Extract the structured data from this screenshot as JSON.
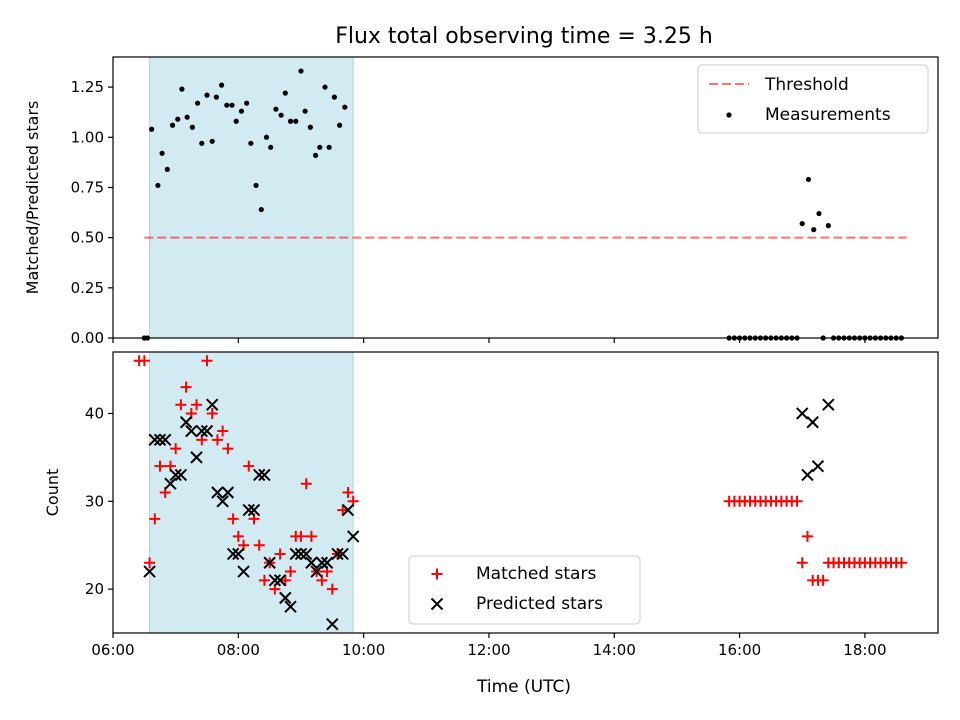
{
  "figure": {
    "title": "Flux total observing time = 3.25 h",
    "xlabel": "Time (UTC)"
  },
  "colors": {
    "shade": "#add8e6",
    "threshold": "#ff0000",
    "measurements": "#000000",
    "matched": "#ff0000",
    "predicted": "#000000"
  },
  "chart_data": [
    {
      "type": "scatter",
      "ylabel": "Matched/Predicted stars",
      "xlim": [
        "06:00",
        "19:10"
      ],
      "ylim": [
        0,
        1.4
      ],
      "x_ticks": [
        "06:00",
        "08:00",
        "10:00",
        "12:00",
        "14:00",
        "16:00",
        "18:00"
      ],
      "y_ticks": [
        "0.00",
        "0.25",
        "0.50",
        "0.75",
        "1.00",
        "1.25"
      ],
      "grid": false,
      "legend_position": "upper-right",
      "shaded_span": [
        "06:35",
        "09:50"
      ],
      "threshold": {
        "name": "Threshold",
        "y": 0.5,
        "x": [
          "06:30",
          "18:40"
        ],
        "style": "dashed"
      },
      "series": [
        {
          "name": "Measurements",
          "marker": "dot",
          "points": [
            [
              "06:30",
              0.0
            ],
            [
              "06:33",
              0.0
            ],
            [
              "06:37",
              1.04
            ],
            [
              "06:43",
              0.76
            ],
            [
              "06:47",
              0.92
            ],
            [
              "06:52",
              0.84
            ],
            [
              "06:57",
              1.06
            ],
            [
              "07:02",
              1.09
            ],
            [
              "07:06",
              1.24
            ],
            [
              "07:11",
              1.1
            ],
            [
              "07:16",
              1.05
            ],
            [
              "07:21",
              1.17
            ],
            [
              "07:25",
              0.97
            ],
            [
              "07:30",
              1.21
            ],
            [
              "07:35",
              0.98
            ],
            [
              "07:39",
              1.2
            ],
            [
              "07:44",
              1.26
            ],
            [
              "07:49",
              1.16
            ],
            [
              "07:54",
              1.16
            ],
            [
              "07:58",
              1.08
            ],
            [
              "08:03",
              1.13
            ],
            [
              "08:08",
              1.17
            ],
            [
              "08:12",
              0.97
            ],
            [
              "08:17",
              0.76
            ],
            [
              "08:22",
              0.64
            ],
            [
              "08:27",
              1.0
            ],
            [
              "08:31",
              0.95
            ],
            [
              "08:36",
              1.14
            ],
            [
              "08:41",
              1.11
            ],
            [
              "08:45",
              1.22
            ],
            [
              "08:50",
              1.08
            ],
            [
              "08:55",
              1.08
            ],
            [
              "09:00",
              1.33
            ],
            [
              "09:04",
              1.13
            ],
            [
              "09:09",
              1.05
            ],
            [
              "09:14",
              0.91
            ],
            [
              "09:18",
              0.95
            ],
            [
              "09:23",
              1.25
            ],
            [
              "09:27",
              0.95
            ],
            [
              "09:32",
              1.2
            ],
            [
              "09:37",
              1.06
            ],
            [
              "09:42",
              1.15
            ],
            [
              "15:50",
              0.0
            ],
            [
              "15:55",
              0.0
            ],
            [
              "16:00",
              0.0
            ],
            [
              "16:05",
              0.0
            ],
            [
              "16:10",
              0.0
            ],
            [
              "16:15",
              0.0
            ],
            [
              "16:20",
              0.0
            ],
            [
              "16:25",
              0.0
            ],
            [
              "16:30",
              0.0
            ],
            [
              "16:35",
              0.0
            ],
            [
              "16:40",
              0.0
            ],
            [
              "16:45",
              0.0
            ],
            [
              "16:50",
              0.0
            ],
            [
              "16:55",
              0.0
            ],
            [
              "17:00",
              0.57
            ],
            [
              "17:06",
              0.79
            ],
            [
              "17:11",
              0.54
            ],
            [
              "17:16",
              0.62
            ],
            [
              "17:20",
              0.0
            ],
            [
              "17:25",
              0.56
            ],
            [
              "17:30",
              0.0
            ],
            [
              "17:35",
              0.0
            ],
            [
              "17:40",
              0.0
            ],
            [
              "17:45",
              0.0
            ],
            [
              "17:50",
              0.0
            ],
            [
              "17:55",
              0.0
            ],
            [
              "18:00",
              0.0
            ],
            [
              "18:05",
              0.0
            ],
            [
              "18:10",
              0.0
            ],
            [
              "18:15",
              0.0
            ],
            [
              "18:20",
              0.0
            ],
            [
              "18:25",
              0.0
            ],
            [
              "18:30",
              0.0
            ],
            [
              "18:35",
              0.0
            ]
          ]
        }
      ]
    },
    {
      "type": "scatter",
      "ylabel": "Count",
      "xlabel": "Time (UTC)",
      "xlim": [
        "06:00",
        "19:10"
      ],
      "ylim": [
        15,
        47
      ],
      "x_ticks": [
        "06:00",
        "08:00",
        "10:00",
        "12:00",
        "14:00",
        "16:00",
        "18:00"
      ],
      "y_ticks": [
        "20",
        "30",
        "40"
      ],
      "grid": false,
      "legend_position": "lower-center",
      "shaded_span": [
        "06:35",
        "09:50"
      ],
      "series": [
        {
          "name": "Matched stars",
          "marker": "plus",
          "points": [
            [
              "06:25",
              46
            ],
            [
              "06:30",
              46
            ],
            [
              "06:35",
              23
            ],
            [
              "06:40",
              28
            ],
            [
              "06:45",
              34
            ],
            [
              "06:50",
              31
            ],
            [
              "06:55",
              34
            ],
            [
              "07:00",
              36
            ],
            [
              "07:05",
              41
            ],
            [
              "07:10",
              43
            ],
            [
              "07:15",
              40
            ],
            [
              "07:20",
              41
            ],
            [
              "07:25",
              37
            ],
            [
              "07:30",
              46
            ],
            [
              "07:35",
              40
            ],
            [
              "07:40",
              37
            ],
            [
              "07:45",
              38
            ],
            [
              "07:50",
              36
            ],
            [
              "07:55",
              28
            ],
            [
              "08:00",
              26
            ],
            [
              "08:05",
              25
            ],
            [
              "08:10",
              34
            ],
            [
              "08:15",
              28
            ],
            [
              "08:20",
              25
            ],
            [
              "08:25",
              21
            ],
            [
              "08:30",
              23
            ],
            [
              "08:35",
              20
            ],
            [
              "08:40",
              24
            ],
            [
              "08:45",
              21
            ],
            [
              "08:50",
              22
            ],
            [
              "08:55",
              26
            ],
            [
              "09:00",
              26
            ],
            [
              "09:05",
              32
            ],
            [
              "09:10",
              26
            ],
            [
              "09:15",
              22
            ],
            [
              "09:20",
              21
            ],
            [
              "09:25",
              22
            ],
            [
              "09:30",
              20
            ],
            [
              "09:35",
              24
            ],
            [
              "09:40",
              29
            ],
            [
              "09:45",
              31
            ],
            [
              "09:50",
              30
            ],
            [
              "15:50",
              30
            ],
            [
              "15:55",
              30
            ],
            [
              "16:00",
              30
            ],
            [
              "16:05",
              30
            ],
            [
              "16:10",
              30
            ],
            [
              "16:15",
              30
            ],
            [
              "16:20",
              30
            ],
            [
              "16:25",
              30
            ],
            [
              "16:30",
              30
            ],
            [
              "16:35",
              30
            ],
            [
              "16:40",
              30
            ],
            [
              "16:45",
              30
            ],
            [
              "16:50",
              30
            ],
            [
              "16:55",
              30
            ],
            [
              "17:00",
              23
            ],
            [
              "17:05",
              26
            ],
            [
              "17:10",
              21
            ],
            [
              "17:15",
              21
            ],
            [
              "17:20",
              21
            ],
            [
              "17:25",
              23
            ],
            [
              "17:30",
              23
            ],
            [
              "17:35",
              23
            ],
            [
              "17:40",
              23
            ],
            [
              "17:45",
              23
            ],
            [
              "17:50",
              23
            ],
            [
              "17:55",
              23
            ],
            [
              "18:00",
              23
            ],
            [
              "18:05",
              23
            ],
            [
              "18:10",
              23
            ],
            [
              "18:15",
              23
            ],
            [
              "18:20",
              23
            ],
            [
              "18:25",
              23
            ],
            [
              "18:30",
              23
            ],
            [
              "18:35",
              23
            ]
          ]
        },
        {
          "name": "Predicted stars",
          "marker": "x",
          "points": [
            [
              "06:35",
              22
            ],
            [
              "06:40",
              37
            ],
            [
              "06:45",
              37
            ],
            [
              "06:50",
              37
            ],
            [
              "06:55",
              32
            ],
            [
              "07:00",
              33
            ],
            [
              "07:05",
              33
            ],
            [
              "07:10",
              39
            ],
            [
              "07:15",
              38
            ],
            [
              "07:20",
              35
            ],
            [
              "07:25",
              38
            ],
            [
              "07:30",
              38
            ],
            [
              "07:35",
              41
            ],
            [
              "07:40",
              31
            ],
            [
              "07:45",
              30
            ],
            [
              "07:50",
              31
            ],
            [
              "07:55",
              24
            ],
            [
              "08:00",
              24
            ],
            [
              "08:05",
              22
            ],
            [
              "08:10",
              29
            ],
            [
              "08:15",
              29
            ],
            [
              "08:20",
              33
            ],
            [
              "08:25",
              33
            ],
            [
              "08:30",
              23
            ],
            [
              "08:35",
              21
            ],
            [
              "08:40",
              21
            ],
            [
              "08:45",
              19
            ],
            [
              "08:50",
              18
            ],
            [
              "08:55",
              24
            ],
            [
              "09:00",
              24
            ],
            [
              "09:05",
              24
            ],
            [
              "09:10",
              23
            ],
            [
              "09:15",
              22
            ],
            [
              "09:20",
              23
            ],
            [
              "09:25",
              23
            ],
            [
              "09:30",
              16
            ],
            [
              "09:35",
              24
            ],
            [
              "09:40",
              24
            ],
            [
              "09:45",
              29
            ],
            [
              "09:50",
              26
            ],
            [
              "17:00",
              40
            ],
            [
              "17:05",
              33
            ],
            [
              "17:10",
              39
            ],
            [
              "17:15",
              34
            ],
            [
              "17:25",
              41
            ]
          ]
        }
      ]
    }
  ]
}
